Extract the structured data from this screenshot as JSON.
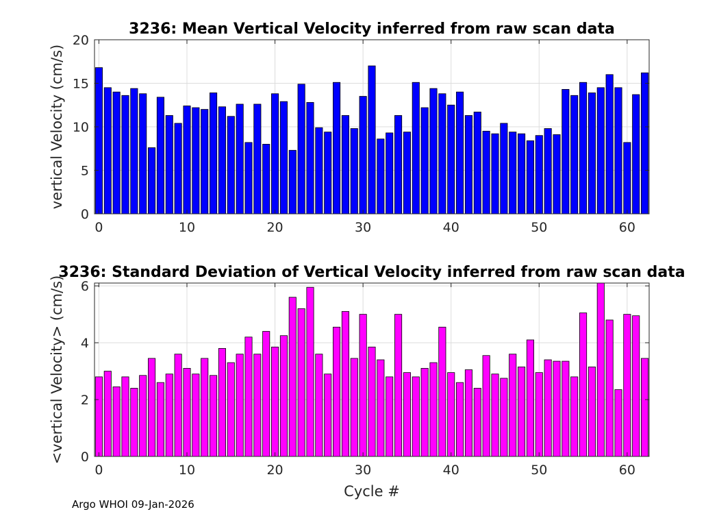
{
  "footer": "Argo WHOI 09-Jan-2026",
  "chart_data": [
    {
      "type": "bar",
      "title": "3236: Mean Vertical Velocity inferred from raw scan data",
      "xlabel": "",
      "ylabel": "vertical Velocity (cm/s)",
      "xlim": [
        -0.5,
        62.5
      ],
      "ylim": [
        0,
        20
      ],
      "xticks": [
        0,
        10,
        20,
        30,
        40,
        50,
        60
      ],
      "yticks": [
        0,
        5,
        10,
        15,
        20
      ],
      "grid": true,
      "color": "#0000ff",
      "x": [
        0,
        1,
        2,
        3,
        4,
        5,
        6,
        7,
        8,
        9,
        10,
        11,
        12,
        13,
        14,
        15,
        16,
        17,
        18,
        19,
        20,
        21,
        22,
        23,
        24,
        25,
        26,
        27,
        28,
        29,
        30,
        31,
        32,
        33,
        34,
        35,
        36,
        37,
        38,
        39,
        40,
        41,
        42,
        43,
        44,
        45,
        46,
        47,
        48,
        49,
        50,
        51,
        52,
        53,
        54,
        55,
        56,
        57,
        58,
        59,
        60,
        61,
        62
      ],
      "values": [
        16.8,
        14.5,
        14.0,
        13.6,
        14.4,
        13.8,
        7.6,
        13.4,
        11.3,
        10.4,
        12.4,
        12.2,
        12.0,
        13.9,
        12.3,
        11.2,
        12.6,
        8.2,
        12.6,
        8.0,
        13.8,
        12.9,
        7.3,
        14.9,
        12.8,
        9.9,
        9.4,
        15.1,
        11.3,
        9.8,
        13.5,
        17.0,
        8.6,
        9.3,
        11.3,
        9.4,
        15.1,
        12.2,
        14.4,
        13.8,
        12.5,
        14.0,
        11.3,
        11.7,
        9.5,
        9.2,
        10.4,
        9.4,
        9.2,
        8.4,
        9.0,
        9.8,
        9.1,
        14.3,
        13.6,
        15.1,
        13.9,
        14.5,
        16.0,
        14.5,
        8.2,
        13.7,
        16.2
      ]
    },
    {
      "type": "bar",
      "title": "3236: Standard Deviation of Vertical Velocity inferred from raw scan data",
      "xlabel": "Cycle #",
      "ylabel": "<vertical Velocity> (cm/s)",
      "xlim": [
        -0.5,
        62.5
      ],
      "ylim": [
        0,
        6.1
      ],
      "xticks": [
        0,
        10,
        20,
        30,
        40,
        50,
        60
      ],
      "yticks": [
        0,
        2,
        4,
        6
      ],
      "grid": true,
      "color": "#ff00ff",
      "x": [
        0,
        1,
        2,
        3,
        4,
        5,
        6,
        7,
        8,
        9,
        10,
        11,
        12,
        13,
        14,
        15,
        16,
        17,
        18,
        19,
        20,
        21,
        22,
        23,
        24,
        25,
        26,
        27,
        28,
        29,
        30,
        31,
        32,
        33,
        34,
        35,
        36,
        37,
        38,
        39,
        40,
        41,
        42,
        43,
        44,
        45,
        46,
        47,
        48,
        49,
        50,
        51,
        52,
        53,
        54,
        55,
        56,
        57,
        58,
        59,
        60,
        61,
        62
      ],
      "values": [
        2.8,
        3.0,
        2.45,
        2.8,
        2.4,
        2.85,
        3.45,
        2.6,
        2.9,
        3.6,
        3.1,
        2.9,
        3.45,
        2.85,
        3.8,
        3.3,
        3.6,
        4.2,
        3.6,
        4.4,
        3.85,
        4.25,
        5.6,
        5.2,
        5.95,
        3.6,
        2.9,
        4.55,
        5.1,
        3.45,
        5.0,
        3.85,
        3.4,
        2.8,
        5.0,
        2.95,
        2.8,
        3.1,
        3.3,
        4.55,
        2.95,
        2.6,
        3.05,
        2.4,
        3.55,
        2.9,
        2.75,
        3.6,
        3.15,
        4.1,
        2.95,
        3.4,
        3.35,
        3.35,
        2.8,
        5.05,
        3.15,
        6.1,
        4.8,
        2.35,
        5.0,
        4.95,
        3.45
      ]
    }
  ]
}
